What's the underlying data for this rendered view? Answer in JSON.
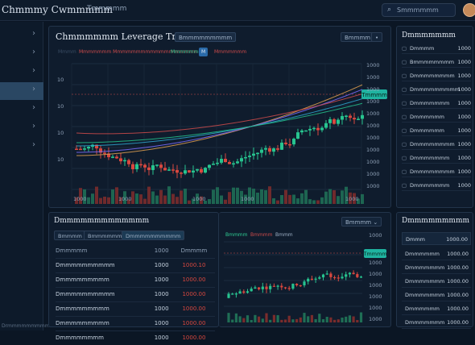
{
  "app": {
    "title": "Chmmmy Cwmmmmm",
    "top_tab": "Tmmmmm",
    "search_placeholder": "Smmmmmm"
  },
  "sidebar": {
    "count": 7,
    "active_index": 3,
    "footer": "Drmmmmmmmmmmmmm"
  },
  "main_chart": {
    "title": "Chmmmmmm Leverage Trading",
    "title_badge": "Bmmmmmmmmm",
    "toolbar_right": [
      "Bmmmm",
      "•"
    ],
    "legend": [
      {
        "label": "Mmmm",
        "color": "#3a4c64"
      },
      {
        "label": "Mmmmmmm Mmmmmmmmmmmmmmmmmm",
        "color": "#d04b4b"
      },
      {
        "label": "Mmmmmmm",
        "color": "#2fcf95"
      },
      {
        "label": "M",
        "color": "#2a6aa8"
      },
      {
        "label": "Mmmmmmm",
        "color": "#d04b4b"
      }
    ],
    "price_tag": "Tmmmm",
    "y_ticks": [
      "1000",
      "1000",
      "1000",
      "1000",
      "1000",
      "1000",
      "1000",
      "1000",
      "1000",
      "1000",
      "1000"
    ],
    "x_ticks": [
      "1000",
      "1000",
      "1000",
      "1000",
      "1000"
    ],
    "left_ticks": [
      "10",
      "10",
      "10",
      "10"
    ]
  },
  "order_book": {
    "title": "Dmmmmmmmmmmmmm",
    "control": "Bmmmm",
    "tabs": [
      "Bmmmm",
      "Bmmmmmm",
      "Dmmmmmmmmmm"
    ],
    "header": [
      "Dmmmmm",
      "1000",
      "Dmmmm"
    ],
    "rows": [
      [
        "Dmmmmmmmmmm",
        "1000",
        "1000.10"
      ],
      [
        "Dmmmmmmmmm",
        "1000",
        "1000.00"
      ],
      [
        "Dmmmmmmmmmm",
        "1000",
        "1000.00"
      ],
      [
        "Dmmmmmmmmm",
        "1000",
        "1000.00"
      ],
      [
        "Dmmmmmmmmm",
        "1000",
        "1000.00"
      ],
      [
        "Dmmmmmmmm",
        "1000",
        "1000.00"
      ]
    ]
  },
  "mini_chart": {
    "legend": [
      {
        "label": "Bmmmm",
        "color": "#2fcf95"
      },
      {
        "label": "Bmmmm",
        "color": "#d04b4b"
      },
      {
        "label": "Bmmm",
        "color": "#9fb1c6"
      }
    ],
    "top_label": "1000",
    "price_tag": "Tmmmm",
    "y_ticks": [
      "1000",
      "1000",
      "1000",
      "1000",
      "1000",
      "1000"
    ]
  },
  "right_top": {
    "title": "Dmmmmmmm",
    "rows": [
      [
        "Dmmmm",
        "1000"
      ],
      [
        "Bmmmmmmmm",
        "1000"
      ],
      [
        "Dmmmmmmmm",
        "1000"
      ],
      [
        "Dmmmmmmmmm",
        "1000"
      ],
      [
        "Dmmmmmmm",
        "1000"
      ],
      [
        "Dmmmmmm",
        "1000"
      ],
      [
        "Dmmmmmm",
        "1000"
      ],
      [
        "Dmmmmmmmm",
        "1000"
      ],
      [
        "Dmmmmmmm",
        "1000"
      ],
      [
        "Dmmmmmmmm",
        "1000"
      ],
      [
        "Dmmmmmmm",
        "1000"
      ]
    ]
  },
  "right_bottom": {
    "title": "Dmmmmmmmmm",
    "header": [
      "Dmmm",
      "1000.00"
    ],
    "rows": [
      [
        "Dmmmmmm",
        "1000.00"
      ],
      [
        "Dmmmmmmm",
        "1000.00"
      ],
      [
        "Dmmmmmmm",
        "1000.00"
      ],
      [
        "Dmmmmmmm",
        "1000.00"
      ],
      [
        "Dmmmmmm",
        "1000.00"
      ],
      [
        "Dmmmmmmm",
        "1000.00"
      ]
    ]
  },
  "colors": {
    "up": "#27c48f",
    "down": "#d9483f",
    "accent": "#1fb3a0",
    "bg": "#0b1624"
  }
}
